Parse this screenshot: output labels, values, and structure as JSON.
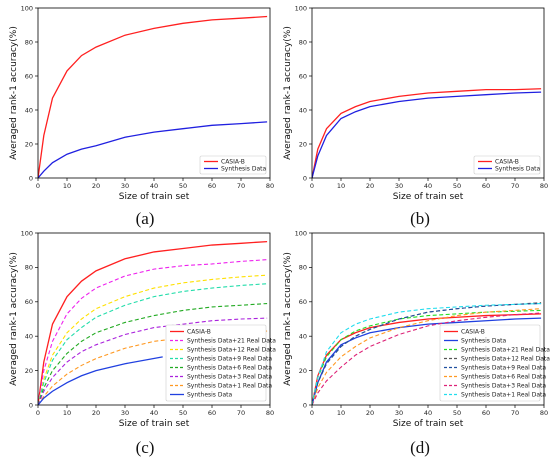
{
  "chart_data": [
    {
      "panel": "(a)",
      "type": "line",
      "xlabel": "Size of train set",
      "ylabel": "Averaged rank-1 accuracy(%)",
      "xlim": [
        0,
        80
      ],
      "ylim": [
        0,
        100
      ],
      "xticks": [
        0,
        10,
        20,
        30,
        40,
        50,
        60,
        70,
        80
      ],
      "yticks": [
        0,
        20,
        40,
        60,
        80,
        100
      ],
      "legend_position": "bottom-right",
      "series": [
        {
          "name": "CASIA-B",
          "color": "#ff2020",
          "dash": "solid",
          "x": [
            0,
            2,
            5,
            10,
            15,
            20,
            30,
            40,
            50,
            60,
            70,
            79
          ],
          "y": [
            0,
            25,
            47,
            63,
            72,
            77,
            84,
            88,
            91,
            93,
            94,
            95
          ]
        },
        {
          "name": "Synthesis Data",
          "color": "#2020e0",
          "dash": "solid",
          "x": [
            0,
            2,
            5,
            10,
            15,
            20,
            30,
            40,
            50,
            60,
            70,
            79
          ],
          "y": [
            0,
            4,
            9,
            14,
            17,
            19,
            24,
            27,
            29,
            31,
            32,
            33
          ]
        }
      ]
    },
    {
      "panel": "(b)",
      "type": "line",
      "xlabel": "Size of train set",
      "ylabel": "Averaged rank-1 accuracy(%)",
      "xlim": [
        0,
        80
      ],
      "ylim": [
        0,
        100
      ],
      "xticks": [
        0,
        10,
        20,
        30,
        40,
        50,
        60,
        70,
        80
      ],
      "yticks": [
        0,
        20,
        40,
        60,
        80,
        100
      ],
      "legend_position": "bottom-right",
      "series": [
        {
          "name": "CASIA-B",
          "color": "#ff2020",
          "dash": "solid",
          "x": [
            0,
            2,
            5,
            10,
            15,
            20,
            30,
            40,
            50,
            60,
            70,
            79
          ],
          "y": [
            0,
            17,
            29,
            38,
            42,
            45,
            48,
            50,
            51,
            52,
            52,
            52.5
          ]
        },
        {
          "name": "Synthesis Data",
          "color": "#2020e0",
          "dash": "solid",
          "x": [
            0,
            2,
            5,
            10,
            15,
            20,
            30,
            40,
            50,
            60,
            70,
            79
          ],
          "y": [
            0,
            13,
            25,
            35,
            39,
            42,
            45,
            47,
            48,
            49,
            50,
            50.5
          ]
        }
      ]
    },
    {
      "panel": "(c)",
      "type": "line",
      "xlabel": "Size of train set",
      "ylabel": "Averaged rank-1 accuracy(%)",
      "xlim": [
        0,
        80
      ],
      "ylim": [
        0,
        100
      ],
      "xticks": [
        0,
        10,
        20,
        30,
        40,
        50,
        60,
        70,
        80
      ],
      "yticks": [
        0,
        20,
        40,
        60,
        80,
        100
      ],
      "legend_position": "bottom-right",
      "series": [
        {
          "name": "CASIA-B",
          "color": "#ff2020",
          "dash": "solid",
          "x": [
            0,
            2,
            5,
            10,
            15,
            20,
            30,
            40,
            50,
            60,
            70,
            79
          ],
          "y": [
            0,
            25,
            47,
            63,
            72,
            78,
            85,
            89,
            91,
            93,
            94,
            95
          ]
        },
        {
          "name": "Synthesis Data+21 Real Data",
          "color": "#ee22ee",
          "dash": "dashed",
          "x": [
            0,
            2,
            5,
            10,
            15,
            20,
            30,
            40,
            50,
            60,
            70,
            79
          ],
          "y": [
            0,
            20,
            37,
            53,
            62,
            68,
            75,
            79,
            81,
            82,
            83.5,
            84.5
          ]
        },
        {
          "name": "Synthesis Data+12 Real Data",
          "color": "#ffe000",
          "dash": "dashed",
          "x": [
            0,
            2,
            5,
            10,
            15,
            20,
            30,
            40,
            50,
            60,
            70,
            79
          ],
          "y": [
            0,
            15,
            29,
            42,
            50,
            56,
            63,
            68,
            71,
            73,
            74.5,
            75.5
          ]
        },
        {
          "name": "Synthesis Data+9 Real Data",
          "color": "#22ddaa",
          "dash": "dashed",
          "x": [
            0,
            2,
            5,
            10,
            15,
            20,
            30,
            40,
            50,
            60,
            70,
            79
          ],
          "y": [
            0,
            13,
            26,
            38,
            45,
            51,
            58,
            63,
            66,
            68,
            69.5,
            70.5
          ]
        },
        {
          "name": "Synthesis Data+6 Real Data",
          "color": "#22aa22",
          "dash": "dashed",
          "x": [
            0,
            2,
            5,
            10,
            15,
            20,
            30,
            40,
            50,
            60,
            70,
            79
          ],
          "y": [
            0,
            10,
            20,
            30,
            37,
            42,
            48,
            52,
            55,
            57,
            58,
            59
          ]
        },
        {
          "name": "Synthesis Data+3 Real Data",
          "color": "#aa22dd",
          "dash": "dashed",
          "x": [
            0,
            2,
            5,
            10,
            15,
            20,
            30,
            40,
            50,
            60,
            70,
            79
          ],
          "y": [
            0,
            8,
            16,
            25,
            31,
            35,
            41,
            45,
            47,
            49,
            50,
            50.5
          ]
        },
        {
          "name": "Synthesis Data+1 Real Data",
          "color": "#ff9922",
          "dash": "dashed",
          "x": [
            0,
            2,
            5,
            10,
            15,
            20,
            30,
            40,
            50,
            60,
            70,
            79
          ],
          "y": [
            0,
            5,
            11,
            18,
            23,
            27,
            33,
            37,
            39,
            41,
            42,
            43
          ]
        },
        {
          "name": "Synthesis Data",
          "color": "#2040e0",
          "dash": "solid",
          "x": [
            0,
            2,
            5,
            10,
            15,
            20,
            30,
            43
          ],
          "y": [
            0,
            4,
            8,
            13,
            17,
            20,
            24,
            28
          ]
        }
      ]
    },
    {
      "panel": "(d)",
      "type": "line",
      "xlabel": "Size of train set",
      "ylabel": "Averaged rank-1 accuracy(%)",
      "xlim": [
        0,
        80
      ],
      "ylim": [
        0,
        100
      ],
      "xticks": [
        0,
        10,
        20,
        30,
        40,
        50,
        60,
        70,
        80
      ],
      "yticks": [
        0,
        20,
        40,
        60,
        80,
        100
      ],
      "legend_position": "bottom-right",
      "series": [
        {
          "name": "CASIA-B",
          "color": "#ff2020",
          "dash": "solid",
          "x": [
            0,
            2,
            5,
            10,
            15,
            20,
            30,
            40,
            50,
            60,
            70,
            79
          ],
          "y": [
            0,
            17,
            29,
            38,
            42,
            45,
            48,
            50,
            51,
            52,
            52.5,
            53
          ]
        },
        {
          "name": "Synthesis Data",
          "color": "#2040e0",
          "dash": "solid",
          "x": [
            0,
            2,
            5,
            10,
            15,
            20,
            30,
            40,
            50,
            60,
            70,
            79
          ],
          "y": [
            0,
            13,
            25,
            35,
            39,
            42,
            45,
            47,
            48,
            49,
            50,
            50.5
          ]
        },
        {
          "name": "Synthesis Data+21 Real Data",
          "color": "#22dd22",
          "dash": "dashed",
          "x": [
            0,
            2,
            5,
            10,
            15,
            20,
            30,
            40,
            50,
            60,
            70,
            79
          ],
          "y": [
            0,
            16,
            28,
            38,
            43,
            46,
            50,
            52,
            53,
            54,
            54.5,
            55
          ]
        },
        {
          "name": "Synthesis Data+12 Real Data",
          "color": "#555555",
          "dash": "dashed",
          "x": [
            0,
            2,
            5,
            10,
            15,
            20,
            30,
            40,
            50,
            60,
            70,
            79
          ],
          "y": [
            0,
            13,
            24,
            34,
            40,
            44,
            50,
            54,
            56,
            57.5,
            58.5,
            59.5
          ]
        },
        {
          "name": "Synthesis Data+9 Real Data",
          "color": "#2050a0",
          "dash": "dashed",
          "x": [
            0,
            2,
            5,
            10,
            15,
            20,
            30,
            40,
            50,
            60,
            70,
            79
          ],
          "y": [
            0,
            13,
            24,
            34,
            40,
            44,
            50,
            54,
            56,
            57.5,
            58.5,
            59
          ]
        },
        {
          "name": "Synthesis Data+6 Real Data",
          "color": "#ff9922",
          "dash": "dashed",
          "x": [
            0,
            2,
            5,
            10,
            15,
            20,
            30,
            40,
            50,
            60,
            70,
            79
          ],
          "y": [
            0,
            10,
            19,
            28,
            34,
            39,
            45,
            49,
            52,
            54,
            55,
            56
          ]
        },
        {
          "name": "Synthesis Data+3 Real Data",
          "color": "#dd2277",
          "dash": "dashed",
          "x": [
            0,
            2,
            5,
            10,
            15,
            20,
            30,
            40,
            50,
            60,
            70,
            79
          ],
          "y": [
            0,
            7,
            14,
            22,
            29,
            34,
            41,
            46,
            49,
            51,
            52.5,
            53.5
          ]
        },
        {
          "name": "Synthesis Data+1 Real Data",
          "color": "#22ddee",
          "dash": "dashed",
          "x": [
            0,
            2,
            5,
            10,
            15,
            20,
            30,
            40,
            50,
            60,
            70,
            79
          ],
          "y": [
            0,
            16,
            31,
            42,
            47,
            50,
            54,
            56,
            57,
            58,
            58.5,
            59
          ]
        }
      ]
    }
  ]
}
